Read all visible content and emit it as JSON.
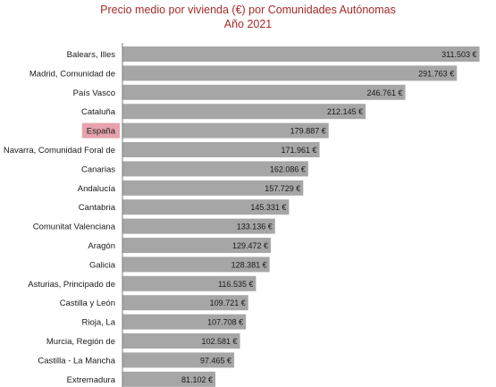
{
  "chart_data": {
    "type": "bar",
    "orientation": "horizontal",
    "title": "Precio medio por vivienda (€) por Comunidades Autónomas",
    "subtitle": "Año 2021",
    "categories": [
      "Balears, Illes",
      "Madrid, Comunidad de",
      "País Vasco",
      "Cataluña",
      "España",
      "Navarra, Comunidad Foral de",
      "Canarias",
      "Andalucía",
      "Cantabria",
      "Comunitat Valenciana",
      "Aragón",
      "Galicia",
      "Asturias, Principado de",
      "Castilla y León",
      "Rioja, La",
      "Murcia, Región de",
      "Castilla - La Mancha",
      "Extremadura"
    ],
    "values": [
      311503,
      291763,
      246761,
      212145,
      179887,
      171961,
      162086,
      157729,
      145331,
      133136,
      129472,
      128381,
      116535,
      109721,
      107708,
      102581,
      97465,
      81102
    ],
    "value_labels": [
      "311.503 €",
      "291.763 €",
      "246.761 €",
      "212.145 €",
      "179.887 €",
      "171.961 €",
      "162.086 €",
      "157.729 €",
      "145.331 €",
      "133.136 €",
      "129.472 €",
      "128.381 €",
      "116.535 €",
      "109.721 €",
      "107.708 €",
      "102.581 €",
      "97.465 €",
      "81.102 €"
    ],
    "highlight_category": "España",
    "xlim": [
      0,
      322000
    ],
    "grid": false,
    "colors": {
      "bar": "#a6a6a6",
      "highlight_label_bg": "#e6a3ad",
      "title": "#a52a2a",
      "axis": "#7f7f7f"
    }
  }
}
